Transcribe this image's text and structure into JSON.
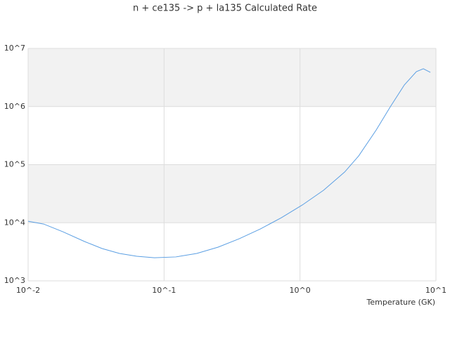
{
  "chart_data": {
    "type": "line",
    "title": "n + ce135 -> p + la135 Calculated Rate",
    "x_label": "Temperature (GK)",
    "x": [
      0.01,
      0.013,
      0.018,
      0.026,
      0.035,
      0.047,
      0.063,
      0.085,
      0.122,
      0.174,
      0.25,
      0.357,
      0.51,
      0.73,
      1.04,
      1.49,
      2.13,
      2.7,
      3.64,
      4.62,
      5.86,
      7.18,
      8.08,
      9.1
    ],
    "series": [
      {
        "color": "#5b9fe3",
        "values": [
          10600,
          9500,
          7000,
          4750,
          3600,
          2960,
          2650,
          2500,
          2580,
          2960,
          3800,
          5300,
          7800,
          12200,
          20200,
          36200,
          74600,
          141000,
          396000,
          993000,
          2360000,
          3990000,
          4470000,
          3880000
        ]
      }
    ],
    "xlog": true,
    "ylog": true,
    "xlim": [
      0.01,
      10
    ],
    "ylim": [
      1000,
      10000000
    ],
    "xticks": [
      {
        "value": 0.01,
        "label": "10^-2"
      },
      {
        "value": 0.1,
        "label": "10^-1"
      },
      {
        "value": 1,
        "label": "10^0"
      },
      {
        "value": 10,
        "label": "10^1"
      }
    ],
    "yticks": [
      {
        "value": 1000,
        "label": "10^3"
      },
      {
        "value": 10000,
        "label": "10^4"
      },
      {
        "value": 100000,
        "label": "10^5"
      },
      {
        "value": 1000000,
        "label": "10^6"
      },
      {
        "value": 10000000,
        "label": "10^7"
      }
    ],
    "bands": true
  }
}
